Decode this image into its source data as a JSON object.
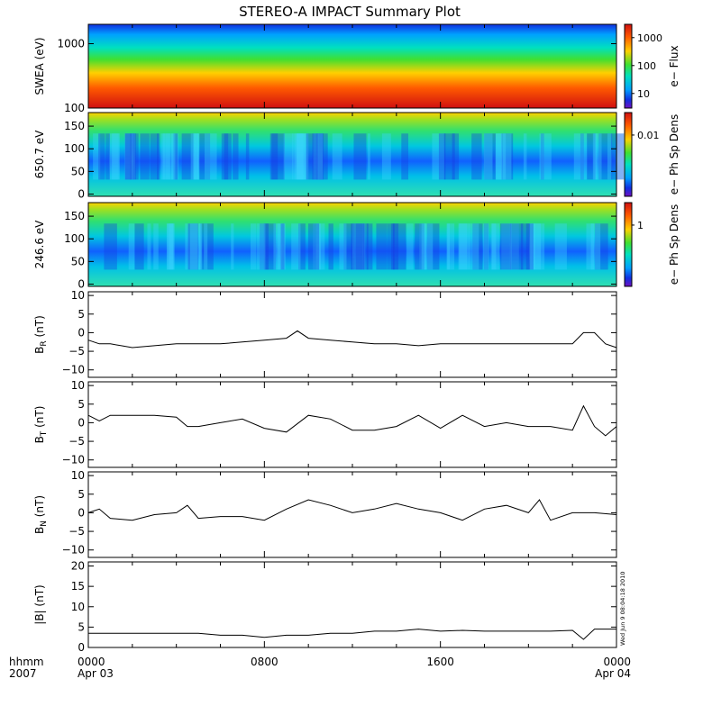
{
  "title": "STEREO-A IMPACT Summary Plot",
  "x_axis": {
    "label_line1": "hhmm",
    "label_line2": "2007",
    "ticks": [
      {
        "hour": 0,
        "time": "0000",
        "date": "Apr 03"
      },
      {
        "hour": 8,
        "time": "0800",
        "date": ""
      },
      {
        "hour": 16,
        "time": "1600",
        "date": ""
      },
      {
        "hour": 24,
        "time": "0000",
        "date": "Apr 04"
      }
    ],
    "range_hours": [
      0,
      24
    ]
  },
  "timestamp": "Wed Jun  9 08:04:18 2010",
  "chart_data": [
    {
      "type": "heatmap",
      "id": "swea",
      "ylabel": "SWEA (eV)",
      "yscale": "log",
      "ylim": [
        100,
        2000
      ],
      "yticks": [
        {
          "v": 100,
          "label": "100"
        },
        {
          "v": 1000,
          "label": "1000"
        }
      ],
      "colorbar": {
        "label": "e− Flux",
        "scale": "log",
        "range": [
          3,
          3000
        ],
        "ticks": [
          {
            "v": 10,
            "label": "10"
          },
          {
            "v": 100,
            "label": "100"
          },
          {
            "v": 1000,
            "label": "1000"
          }
        ]
      }
    },
    {
      "type": "heatmap",
      "id": "pad650",
      "ylabel": "650.7 eV",
      "yscale": "linear",
      "ylim": [
        -5,
        180
      ],
      "yticks": [
        {
          "v": 0,
          "label": "0"
        },
        {
          "v": 50,
          "label": "50"
        },
        {
          "v": 100,
          "label": "100"
        },
        {
          "v": 150,
          "label": "150"
        }
      ],
      "colorbar": {
        "label": "e− Ph Sp Dens",
        "scale": "log",
        "range": [
          0.0005,
          0.03
        ],
        "ticks": [
          {
            "v": 0.01,
            "label": "0.01"
          }
        ]
      }
    },
    {
      "type": "heatmap",
      "id": "pad246",
      "ylabel": "246.6 eV",
      "yscale": "linear",
      "ylim": [
        -5,
        180
      ],
      "yticks": [
        {
          "v": 0,
          "label": "0"
        },
        {
          "v": 50,
          "label": "50"
        },
        {
          "v": 100,
          "label": "100"
        },
        {
          "v": 150,
          "label": "150"
        }
      ],
      "colorbar": {
        "label": "e− Ph Sp Dens",
        "scale": "log",
        "range": [
          0.05,
          3
        ],
        "ticks": [
          {
            "v": 1,
            "label": "1"
          }
        ]
      }
    },
    {
      "type": "line",
      "id": "br",
      "ylabel_main": "B",
      "ylabel_sub": "R",
      "ylabel_unit": " (nT)",
      "ylim": [
        -12,
        11
      ],
      "yticks": [
        {
          "v": -10,
          "label": "−10"
        },
        {
          "v": -5,
          "label": "−5"
        },
        {
          "v": 0,
          "label": "0"
        },
        {
          "v": 5,
          "label": "5"
        },
        {
          "v": 10,
          "label": "10"
        }
      ],
      "x": [
        0,
        0.5,
        1,
        1.5,
        2,
        3,
        4,
        5,
        6,
        7,
        8,
        9,
        9.5,
        10,
        11,
        12,
        13,
        14,
        15,
        16,
        17,
        18,
        19,
        20,
        21,
        22,
        22.5,
        23,
        23.5,
        24
      ],
      "y": [
        -2,
        -3,
        -3,
        -3.5,
        -4,
        -3.5,
        -3,
        -3,
        -3,
        -2.5,
        -2,
        -1.5,
        0.5,
        -1.5,
        -2,
        -2.5,
        -3,
        -3,
        -3.5,
        -3,
        -3,
        -3,
        -3,
        -3,
        -3,
        -3,
        0,
        0,
        -3,
        -4
      ]
    },
    {
      "type": "line",
      "id": "bt",
      "ylabel_main": "B",
      "ylabel_sub": "T",
      "ylabel_unit": " (nT)",
      "ylim": [
        -12,
        11
      ],
      "yticks": [
        {
          "v": -10,
          "label": "−10"
        },
        {
          "v": -5,
          "label": "−5"
        },
        {
          "v": 0,
          "label": "0"
        },
        {
          "v": 5,
          "label": "5"
        },
        {
          "v": 10,
          "label": "10"
        }
      ],
      "x": [
        0,
        0.5,
        1,
        2,
        3,
        4,
        4.5,
        5,
        6,
        7,
        8,
        9,
        10,
        11,
        12,
        13,
        14,
        15,
        16,
        17,
        18,
        19,
        20,
        21,
        22,
        22.5,
        23,
        23.5,
        24
      ],
      "y": [
        2,
        0.5,
        2,
        2,
        2,
        1.5,
        -1,
        -1,
        0,
        1,
        -1.5,
        -2.5,
        2,
        1,
        -2,
        -2,
        -1,
        2,
        -1.5,
        2,
        -1,
        0,
        -1,
        -1,
        -2,
        4.5,
        -1,
        -3.5,
        -1
      ]
    },
    {
      "type": "line",
      "id": "bn",
      "ylabel_main": "B",
      "ylabel_sub": "N",
      "ylabel_unit": " (nT)",
      "ylim": [
        -12,
        11
      ],
      "yticks": [
        {
          "v": -10,
          "label": "−10"
        },
        {
          "v": -5,
          "label": "−5"
        },
        {
          "v": 0,
          "label": "0"
        },
        {
          "v": 5,
          "label": "5"
        },
        {
          "v": 10,
          "label": "10"
        }
      ],
      "x": [
        0,
        0.5,
        1,
        2,
        3,
        4,
        4.5,
        5,
        6,
        7,
        8,
        9,
        10,
        11,
        12,
        13,
        14,
        15,
        16,
        17,
        18,
        19,
        20,
        20.5,
        21,
        22,
        23,
        24
      ],
      "y": [
        0,
        1,
        -1.5,
        -2,
        -0.5,
        0,
        2,
        -1.5,
        -1,
        -1,
        -2,
        1,
        3.5,
        2,
        0,
        1,
        2.5,
        1,
        0,
        -2,
        1,
        2,
        0,
        3.5,
        -2,
        0,
        0,
        -0.5
      ]
    },
    {
      "type": "line",
      "id": "bmag",
      "ylabel_main": "|B|",
      "ylabel_sub": "",
      "ylabel_unit": " (nT)",
      "ylim": [
        0,
        21
      ],
      "yticks": [
        {
          "v": 0,
          "label": "0"
        },
        {
          "v": 5,
          "label": "5"
        },
        {
          "v": 10,
          "label": "10"
        },
        {
          "v": 15,
          "label": "15"
        },
        {
          "v": 20,
          "label": "20"
        }
      ],
      "x": [
        0,
        1,
        2,
        3,
        4,
        5,
        6,
        7,
        8,
        9,
        10,
        11,
        12,
        13,
        14,
        15,
        16,
        17,
        18,
        19,
        20,
        21,
        22,
        22.5,
        23,
        23.5,
        24
      ],
      "y": [
        3.5,
        3.5,
        3.5,
        3.5,
        3.5,
        3.5,
        3,
        3,
        2.5,
        3,
        3,
        3.5,
        3.5,
        4,
        4,
        4.5,
        4,
        4.2,
        4,
        4,
        4,
        4,
        4.2,
        2,
        4.5,
        4.5,
        4.5
      ]
    }
  ]
}
